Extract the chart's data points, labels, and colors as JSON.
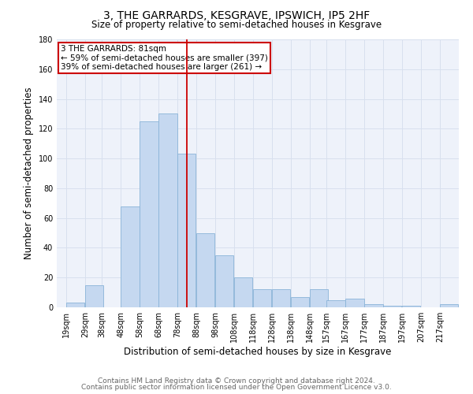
{
  "title": "3, THE GARRARDS, KESGRAVE, IPSWICH, IP5 2HF",
  "subtitle": "Size of property relative to semi-detached houses in Kesgrave",
  "xlabel": "Distribution of semi-detached houses by size in Kesgrave",
  "ylabel": "Number of semi-detached properties",
  "bar_labels": [
    "19sqm",
    "29sqm",
    "38sqm",
    "48sqm",
    "58sqm",
    "68sqm",
    "78sqm",
    "88sqm",
    "98sqm",
    "108sqm",
    "118sqm",
    "128sqm",
    "138sqm",
    "148sqm",
    "157sqm",
    "167sqm",
    "177sqm",
    "187sqm",
    "197sqm",
    "207sqm",
    "217sqm"
  ],
  "bar_values": [
    3,
    15,
    0,
    68,
    125,
    130,
    103,
    50,
    35,
    20,
    12,
    12,
    7,
    12,
    5,
    6,
    2,
    1,
    1,
    0,
    2
  ],
  "bar_color": "#c5d8f0",
  "bar_edge_color": "#8ab4d8",
  "property_line_label": "3 THE GARRARDS: 81sqm",
  "annotation_line1": "← 59% of semi-detached houses are smaller (397)",
  "annotation_line2": "39% of semi-detached houses are larger (261) →",
  "vline_color": "#cc0000",
  "ylim": [
    0,
    180
  ],
  "yticks": [
    0,
    20,
    40,
    60,
    80,
    100,
    120,
    140,
    160,
    180
  ],
  "bin_width": 10,
  "bin_starts": [
    19,
    29,
    38,
    48,
    58,
    68,
    78,
    88,
    98,
    108,
    118,
    128,
    138,
    148,
    157,
    167,
    177,
    187,
    197,
    207,
    217
  ],
  "vline_x": 83,
  "footnote1": "Contains HM Land Registry data © Crown copyright and database right 2024.",
  "footnote2": "Contains public sector information licensed under the Open Government Licence v3.0.",
  "bg_color": "#eef2fa",
  "grid_color": "#d8e0ee",
  "title_fontsize": 10,
  "subtitle_fontsize": 8.5,
  "axis_label_fontsize": 8.5,
  "tick_fontsize": 7,
  "annot_fontsize": 7.5,
  "footnote_fontsize": 6.5
}
